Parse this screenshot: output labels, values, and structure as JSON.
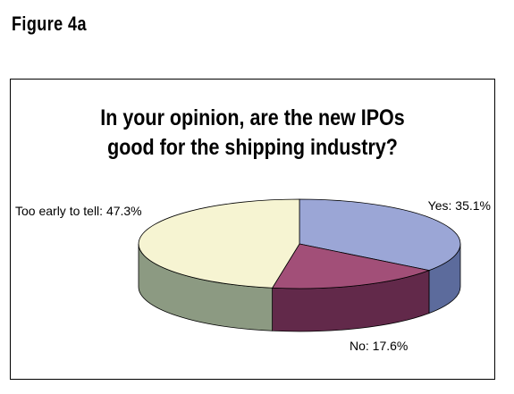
{
  "figure_label": "Figure 4a",
  "chart_data": {
    "type": "pie",
    "title_lines": [
      "In your opinion, are the new IPOs",
      "good for the shipping industry?"
    ],
    "slices": [
      {
        "label": "Yes: 35.1%",
        "value": 35.1,
        "color_top": "#9ba6d6",
        "color_side": "#5c6b9c"
      },
      {
        "label": "No: 17.6%",
        "value": 17.6,
        "color_top": "#a24f78",
        "color_side": "#62294a"
      },
      {
        "label": "Too early to tell: 47.3%",
        "value": 47.3,
        "color_top": "#f6f4d2",
        "color_side": "#8c9a82"
      }
    ],
    "style": "3d-pie"
  }
}
